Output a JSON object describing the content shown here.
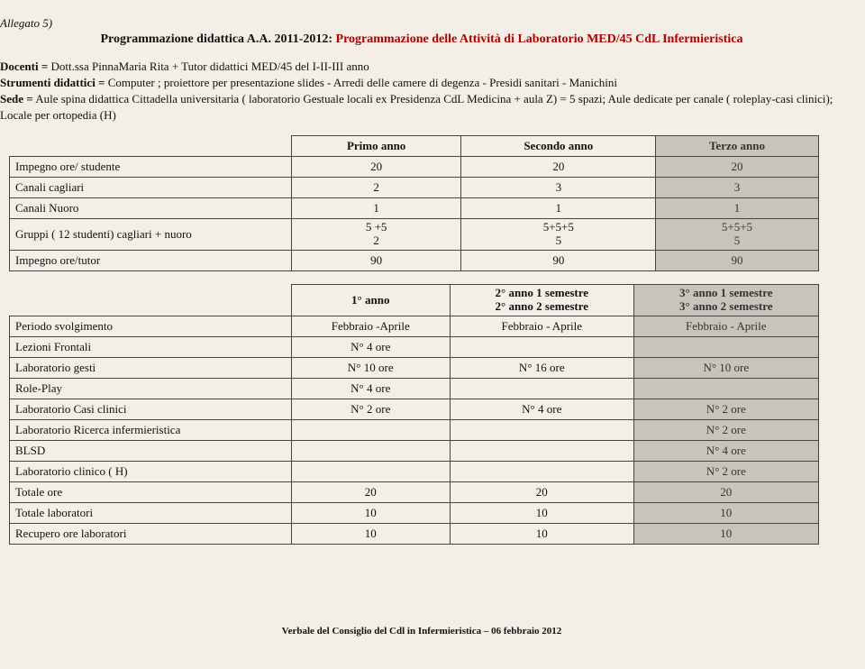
{
  "header": {
    "allegato": "Allegato 5)",
    "title_prefix": "Programmazione didattica A.A. 2011-2012: ",
    "title_red": "Programmazione delle Attività di Laboratorio MED/45 CdL Infermieristica"
  },
  "meta": {
    "docenti_label": "Docenti =",
    "docenti_text": "Dott.ssa PinnaMaria Rita + Tutor didattici MED/45 del I-II-III anno",
    "strumenti_label": "Strumenti didattici =",
    "strumenti_text": "Computer ; proiettore per presentazione slides - Arredi delle camere di degenza - Presidi sanitari - Manichini",
    "sede_label": "Sede =",
    "sede_text": "Aule spina didattica Cittadella universitaria ( laboratorio Gestuale locali ex Presidenza CdL Medicina + aula Z) = 5 spazi; Aule dedicate per canale ( roleplay-casi clinici);",
    "locale": "Locale per ortopedia (H)"
  },
  "table1": {
    "headers": [
      "",
      "Primo anno",
      "Secondo anno",
      "Terzo anno"
    ],
    "rows": [
      [
        "Impegno ore/ studente",
        "20",
        "20",
        "20"
      ],
      [
        "Canali cagliari",
        "2",
        "3",
        "3"
      ],
      [
        "Canali Nuoro",
        "1",
        "1",
        "1"
      ],
      [
        "Gruppi ( 12 studenti) cagliari + nuoro",
        "5 +5\n2",
        "5+5+5\n5",
        "5+5+5\n5"
      ],
      [
        "Impegno ore/tutor",
        "90",
        "90",
        "90"
      ]
    ]
  },
  "table2": {
    "headers": [
      "",
      "1° anno",
      "2° anno 1 semestre\n2° anno 2 semestre",
      "3° anno 1 semestre\n3° anno 2 semestre"
    ],
    "rows": [
      [
        "Periodo svolgimento",
        "Febbraio -Aprile",
        "Febbraio - Aprile",
        "Febbraio - Aprile"
      ],
      [
        "Lezioni Frontali",
        "N°  4   ore",
        "",
        ""
      ],
      [
        "Laboratorio gesti",
        "N°  10  ore",
        "N°  16 ore",
        "N°  10  ore"
      ],
      [
        "Role-Play",
        "N°  4   ore",
        "",
        ""
      ],
      [
        "Laboratorio Casi clinici",
        "N°  2   ore",
        "N°  4  ore",
        "N°  2   ore"
      ],
      [
        "Laboratorio Ricerca infermieristica",
        "",
        "",
        "N°  2   ore"
      ],
      [
        "BLSD",
        "",
        "",
        "N°  4   ore"
      ],
      [
        "Laboratorio clinico ( H)",
        "",
        "",
        "N°  2   ore"
      ],
      [
        "Totale ore",
        "20",
        "20",
        "20"
      ],
      [
        "Totale laboratori",
        "10",
        "10",
        "10"
      ],
      [
        "Recupero ore laboratori",
        "10",
        "10",
        "10"
      ]
    ]
  },
  "footer": "Verbale del Consiglio del Cdl in Infermieristica – 06 febbraio 2012"
}
